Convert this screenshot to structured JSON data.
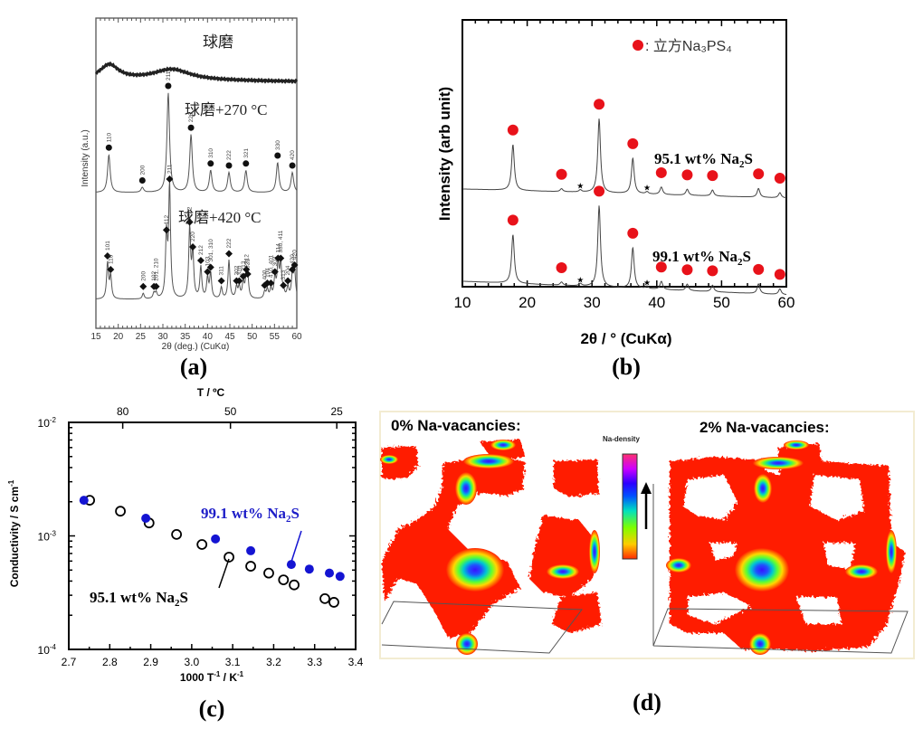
{
  "chart_data": [
    {
      "panel": "a",
      "type": "line",
      "caption": "(a)",
      "xlabel": "2θ (deg.) (CuKα)",
      "ylabel": "Intensity (a.u.)",
      "xlim": [
        15,
        60
      ],
      "xticks": [
        15,
        20,
        25,
        30,
        35,
        40,
        45,
        50,
        55,
        60
      ],
      "series": [
        {
          "name": "球磨",
          "label": "球磨",
          "profile": "amorphous",
          "humps": [
            18,
            32
          ]
        },
        {
          "name": "球磨+270 °C",
          "label": "球磨+270 °C",
          "marker": "circle",
          "peaks": [
            {
              "x": 17.9,
              "h": 0.38,
              "hkl": "110"
            },
            {
              "x": 25.4,
              "h": 0.05,
              "hkl": "200"
            },
            {
              "x": 31.2,
              "h": 1.0,
              "hkl": "211"
            },
            {
              "x": 36.3,
              "h": 0.58,
              "hkl": "220"
            },
            {
              "x": 40.7,
              "h": 0.22,
              "hkl": "310"
            },
            {
              "x": 44.8,
              "h": 0.2,
              "hkl": "222"
            },
            {
              "x": 48.6,
              "h": 0.22,
              "hkl": "321"
            },
            {
              "x": 55.7,
              "h": 0.3,
              "hkl": "330"
            },
            {
              "x": 59.0,
              "h": 0.2,
              "hkl": "420"
            }
          ]
        },
        {
          "name": "球磨+420 °C",
          "label": "球磨+420 °C",
          "marker": "diamond",
          "peaks": [
            {
              "x": 17.6,
              "h": 0.32,
              "hkl": "101"
            },
            {
              "x": 18.3,
              "h": 0.2,
              "hkl": "110"
            },
            {
              "x": 25.6,
              "h": 0.05,
              "hkl": "200"
            },
            {
              "x": 28.0,
              "h": 0.05,
              "hkl": "102"
            },
            {
              "x": 28.5,
              "h": 0.05,
              "hkl": "201, 210"
            },
            {
              "x": 30.8,
              "h": 0.55,
              "hkl": "112"
            },
            {
              "x": 31.5,
              "h": 1.0,
              "hkl": "211"
            },
            {
              "x": 36.0,
              "h": 0.62,
              "hkl": "202"
            },
            {
              "x": 36.7,
              "h": 0.4,
              "hkl": "220"
            },
            {
              "x": 38.5,
              "h": 0.28,
              "hkl": "212"
            },
            {
              "x": 40.0,
              "h": 0.18,
              "hkl": "103"
            },
            {
              "x": 40.7,
              "h": 0.22,
              "hkl": "301, 310"
            },
            {
              "x": 43.1,
              "h": 0.1,
              "hkl": "311"
            },
            {
              "x": 44.8,
              "h": 0.34,
              "hkl": "222"
            },
            {
              "x": 46.5,
              "h": 0.1,
              "hkl": "302"
            },
            {
              "x": 47.1,
              "h": 0.1,
              "hkl": "320"
            },
            {
              "x": 48.0,
              "h": 0.14,
              "hkl": "213"
            },
            {
              "x": 48.7,
              "h": 0.2,
              "hkl": "312"
            },
            {
              "x": 49.0,
              "h": 0.16,
              "hkl": "321"
            },
            {
              "x": 52.8,
              "h": 0.06,
              "hkl": "400"
            },
            {
              "x": 53.4,
              "h": 0.08,
              "hkl": "104"
            },
            {
              "x": 54.2,
              "h": 0.08,
              "hkl": "410, 401"
            },
            {
              "x": 55.1,
              "h": 0.18,
              "hkl": "303"
            },
            {
              "x": 55.8,
              "h": 0.3,
              "hkl": "114"
            },
            {
              "x": 56.4,
              "h": 0.3,
              "hkl": "330, 411"
            },
            {
              "x": 57.0,
              "h": 0.06,
              "hkl": "313"
            },
            {
              "x": 58.0,
              "h": 0.1,
              "hkl": "204"
            },
            {
              "x": 59.0,
              "h": 0.2,
              "hkl": "420"
            },
            {
              "x": 59.5,
              "h": 0.24,
              "hkl": "420"
            }
          ]
        }
      ]
    },
    {
      "panel": "b",
      "type": "line",
      "caption": "(b)",
      "xlabel": "2θ / ° (CuKα)",
      "ylabel": "Intensity (arb unit)",
      "xlim": [
        10,
        60
      ],
      "xticks": [
        10,
        20,
        30,
        40,
        50,
        60
      ],
      "legend": {
        "marker": "red-circle",
        "label": ": 立方Na₃PS₄",
        "position": "top-right"
      },
      "marker_color": "#e8121a",
      "series": [
        {
          "name": "95.1 wt% Na2S",
          "label_main": "95.1 wt% Na",
          "label_sub": "2",
          "label_end": "S",
          "peaks": [
            {
              "x": 17.8,
              "h": 0.62,
              "marker": "circle"
            },
            {
              "x": 25.3,
              "h": 0.04,
              "marker": "circle"
            },
            {
              "x": 28.2,
              "h": 0.03,
              "marker": "star"
            },
            {
              "x": 31.1,
              "h": 1.0,
              "marker": "circle"
            },
            {
              "x": 36.3,
              "h": 0.48,
              "marker": "circle"
            },
            {
              "x": 38.5,
              "h": 0.03,
              "marker": "star"
            },
            {
              "x": 40.7,
              "h": 0.1,
              "marker": "circle"
            },
            {
              "x": 44.7,
              "h": 0.08,
              "marker": "circle"
            },
            {
              "x": 48.6,
              "h": 0.08,
              "marker": "circle"
            },
            {
              "x": 55.7,
              "h": 0.12,
              "marker": "circle"
            },
            {
              "x": 59.0,
              "h": 0.07,
              "marker": "circle"
            }
          ]
        },
        {
          "name": "99.1 wt% Na2S",
          "label_main": "99.1 wt% Na",
          "label_sub": "2",
          "label_end": "S",
          "peaks": [
            {
              "x": 17.8,
              "h": 0.6,
              "marker": "circle"
            },
            {
              "x": 25.3,
              "h": 0.04,
              "marker": "circle"
            },
            {
              "x": 28.2,
              "h": 0.03,
              "marker": "star"
            },
            {
              "x": 31.1,
              "h": 1.0,
              "marker": "circle"
            },
            {
              "x": 36.3,
              "h": 0.5,
              "marker": "circle"
            },
            {
              "x": 38.5,
              "h": 0.03,
              "marker": "star"
            },
            {
              "x": 40.7,
              "h": 0.1,
              "marker": "circle"
            },
            {
              "x": 44.7,
              "h": 0.08,
              "marker": "circle"
            },
            {
              "x": 48.6,
              "h": 0.08,
              "marker": "circle"
            },
            {
              "x": 55.7,
              "h": 0.12,
              "marker": "circle"
            },
            {
              "x": 59.0,
              "h": 0.07,
              "marker": "circle"
            }
          ]
        }
      ]
    },
    {
      "panel": "c",
      "type": "scatter",
      "caption": "(c)",
      "xlabel_main": "1000 T",
      "xlabel_sup1": "-1",
      "xlabel_mid": " / K",
      "xlabel_sup2": "-1",
      "ylabel_main": "Conductivity / S cm",
      "ylabel_sup": "-1",
      "top_axis_label": "T / ºC",
      "top_ticks": [
        80,
        50,
        25
      ],
      "xlim": [
        2.7,
        3.4
      ],
      "xticks": [
        "2.7",
        "2.8",
        "2.9",
        "3.0",
        "3.1",
        "3.2",
        "3.3",
        "3.4"
      ],
      "yscale": "log",
      "ylim": [
        0.0001,
        0.01
      ],
      "yticks": [
        {
          "value": 0.01,
          "base": "10",
          "exp": "-2"
        },
        {
          "value": 0.001,
          "base": "10",
          "exp": "-3"
        },
        {
          "value": 0.0001,
          "base": "10",
          "exp": "-4"
        }
      ],
      "series": [
        {
          "name": "99.1 wt% Na2S",
          "label_main": "99.1 wt% Na",
          "label_sub": "2",
          "label_end": "S",
          "color": "#1414d2",
          "filled": true,
          "x": [
            2.737,
            2.888,
            3.058,
            3.144,
            3.243,
            3.287,
            3.336,
            3.362
          ],
          "y": [
            0.00206,
            0.00143,
            0.00094,
            0.00074,
            0.00056,
            0.00051,
            0.00047,
            0.00044
          ]
        },
        {
          "name": "95.1 wt% Na2S",
          "label_main": "95.1 wt% Na",
          "label_sub": "2",
          "label_end": "S",
          "color": "#000000",
          "filled": false,
          "x": [
            2.751,
            2.826,
            2.896,
            2.963,
            3.025,
            3.091,
            3.144,
            3.188,
            3.224,
            3.25,
            3.325,
            3.347
          ],
          "y": [
            0.00206,
            0.00165,
            0.0013,
            0.00103,
            0.00084,
            0.00065,
            0.00054,
            0.00047,
            0.00041,
            0.00037,
            0.00028,
            0.00026
          ]
        }
      ]
    }
  ],
  "panel_d": {
    "caption": "(d)",
    "left_title": "0% Na-vacancies:",
    "right_title": "2% Na-vacancies:",
    "colorbar_label": "Na-density",
    "colorbar_colors": [
      "#ff2a00",
      "#ffcc00",
      "#7dff00",
      "#00e0c0",
      "#0050ff",
      "#2a00ff",
      "#cc00ff",
      "#ff3070"
    ]
  }
}
